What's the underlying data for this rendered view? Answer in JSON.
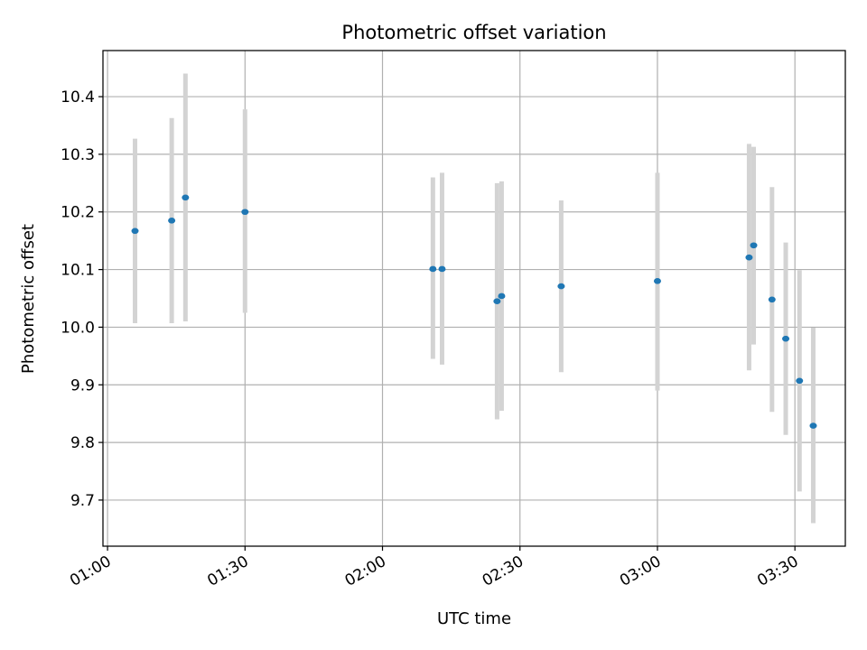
{
  "chart_data": {
    "type": "scatter",
    "title": "Photometric offset variation",
    "xlabel": "UTC time",
    "ylabel": "Photometric offset",
    "x_ticks": [
      "01:00",
      "01:30",
      "02:00",
      "02:30",
      "03:00",
      "03:30"
    ],
    "x_tick_minutes": [
      60,
      90,
      120,
      150,
      180,
      210
    ],
    "y_ticks": [
      "9.7",
      "9.8",
      "9.9",
      "10.0",
      "10.1",
      "10.2",
      "10.3",
      "10.4"
    ],
    "y_tick_values": [
      9.7,
      9.8,
      9.9,
      10.0,
      10.1,
      10.2,
      10.3,
      10.4
    ],
    "xlim_minutes": [
      59,
      221
    ],
    "ylim": [
      9.62,
      10.48
    ],
    "grid": true,
    "marker_color": "#1f77b4",
    "errorbar_color": "#d3d3d3",
    "points": [
      {
        "time": "01:06",
        "y": 10.167,
        "ylow": 10.007,
        "yhigh": 10.327
      },
      {
        "time": "01:14",
        "y": 10.185,
        "ylow": 10.007,
        "yhigh": 10.363
      },
      {
        "time": "01:17",
        "y": 10.225,
        "ylow": 10.01,
        "yhigh": 10.44
      },
      {
        "time": "01:30",
        "y": 10.2,
        "ylow": 10.025,
        "yhigh": 10.378
      },
      {
        "time": "02:11",
        "y": 10.101,
        "ylow": 9.945,
        "yhigh": 10.26
      },
      {
        "time": "02:13",
        "y": 10.101,
        "ylow": 9.935,
        "yhigh": 10.268
      },
      {
        "time": "02:25",
        "y": 10.045,
        "ylow": 9.84,
        "yhigh": 10.25
      },
      {
        "time": "02:26",
        "y": 10.054,
        "ylow": 9.855,
        "yhigh": 10.253
      },
      {
        "time": "02:39",
        "y": 10.071,
        "ylow": 9.922,
        "yhigh": 10.22
      },
      {
        "time": "03:00",
        "y": 10.08,
        "ylow": 9.89,
        "yhigh": 10.268
      },
      {
        "time": "03:20",
        "y": 10.121,
        "ylow": 9.925,
        "yhigh": 10.318
      },
      {
        "time": "03:21",
        "y": 10.142,
        "ylow": 9.97,
        "yhigh": 10.313
      },
      {
        "time": "03:25",
        "y": 10.048,
        "ylow": 9.853,
        "yhigh": 10.243
      },
      {
        "time": "03:28",
        "y": 9.98,
        "ylow": 9.813,
        "yhigh": 10.147
      },
      {
        "time": "03:31",
        "y": 9.907,
        "ylow": 9.715,
        "yhigh": 10.099
      },
      {
        "time": "03:34",
        "y": 9.829,
        "ylow": 9.66,
        "yhigh": 9.999
      }
    ]
  }
}
